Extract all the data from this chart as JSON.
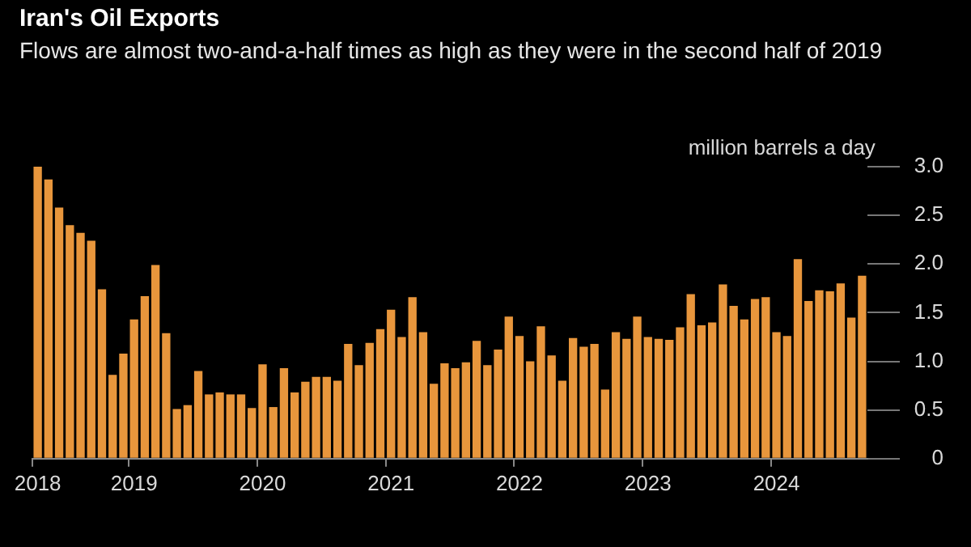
{
  "chart_data": {
    "type": "bar",
    "title": "Iran's Oil Exports",
    "subtitle": "Flows are almost two-and-a-half times as high as they were in the second half of 2019",
    "ylabel": "million barrels a day",
    "categories": [
      "2018",
      null,
      null,
      null,
      null,
      null,
      null,
      null,
      null,
      "2019",
      null,
      null,
      null,
      null,
      null,
      null,
      null,
      null,
      null,
      null,
      null,
      "2020",
      null,
      null,
      null,
      null,
      null,
      null,
      null,
      null,
      null,
      null,
      null,
      "2021",
      null,
      null,
      null,
      null,
      null,
      null,
      null,
      null,
      null,
      null,
      null,
      "2022",
      null,
      null,
      null,
      null,
      null,
      null,
      null,
      null,
      null,
      null,
      null,
      "2023",
      null,
      null,
      null,
      null,
      null,
      null,
      null,
      null,
      null,
      null,
      null,
      "2024",
      null,
      null,
      null,
      null,
      null,
      null,
      null,
      null
    ],
    "values": [
      3.0,
      2.87,
      2.58,
      2.4,
      2.32,
      2.24,
      1.74,
      0.86,
      1.08,
      1.43,
      1.67,
      1.99,
      1.29,
      0.51,
      0.55,
      0.9,
      0.66,
      0.68,
      0.66,
      0.66,
      0.52,
      0.97,
      0.53,
      0.93,
      0.68,
      0.79,
      0.84,
      0.84,
      0.8,
      1.18,
      0.96,
      1.19,
      1.33,
      1.53,
      1.25,
      1.66,
      1.3,
      0.77,
      0.98,
      0.93,
      0.99,
      1.21,
      0.96,
      1.12,
      1.46,
      1.26,
      1.0,
      1.36,
      1.06,
      0.8,
      1.24,
      1.15,
      1.18,
      0.71,
      1.3,
      1.23,
      1.46,
      1.25,
      1.23,
      1.22,
      1.35,
      1.69,
      1.37,
      1.4,
      1.79,
      1.57,
      1.43,
      1.64,
      1.66,
      1.3,
      1.26,
      2.05,
      1.62,
      1.73,
      1.72,
      1.8,
      1.45,
      1.88
    ],
    "color": "#e8963c",
    "ylim": [
      0,
      3.0
    ],
    "yticks": [
      0,
      0.5,
      {
        "value": 1,
        "label": "1.0"
      },
      1.5,
      {
        "value": 2,
        "label": "2.0"
      },
      2.5,
      {
        "value": 3,
        "label": "3.0"
      }
    ]
  }
}
